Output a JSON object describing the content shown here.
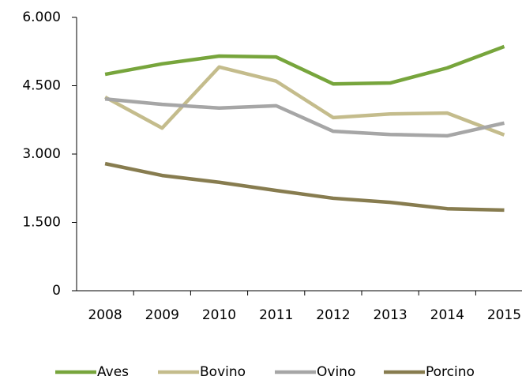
{
  "chart_data": {
    "type": "line",
    "categories": [
      "2008",
      "2009",
      "2010",
      "2011",
      "2012",
      "2013",
      "2014",
      "2015"
    ],
    "series": [
      {
        "name": "Aves",
        "color": "#77a53c",
        "values": [
          4750,
          4980,
          5150,
          5130,
          4540,
          4560,
          4890,
          5360
        ]
      },
      {
        "name": "Bovino",
        "color": "#c4bc8c",
        "values": [
          4250,
          3570,
          4910,
          4600,
          3800,
          3880,
          3900,
          3420
        ]
      },
      {
        "name": "Ovino",
        "color": "#a6a6a6",
        "values": [
          4210,
          4090,
          4010,
          4060,
          3500,
          3430,
          3400,
          3680
        ]
      },
      {
        "name": "Porcino",
        "color": "#877c4f",
        "values": [
          2790,
          2530,
          2380,
          2200,
          2030,
          1940,
          1800,
          1770
        ]
      }
    ],
    "ylim": [
      0,
      6000
    ],
    "yticks": [
      0,
      {
        "value": 1500,
        "label": "1.500"
      },
      {
        "value": 3000,
        "label": "3.000"
      },
      {
        "value": 4500,
        "label": "4.500"
      },
      {
        "value": 6000,
        "label": "6.000"
      }
    ],
    "grid": false,
    "legend": "bottom"
  }
}
